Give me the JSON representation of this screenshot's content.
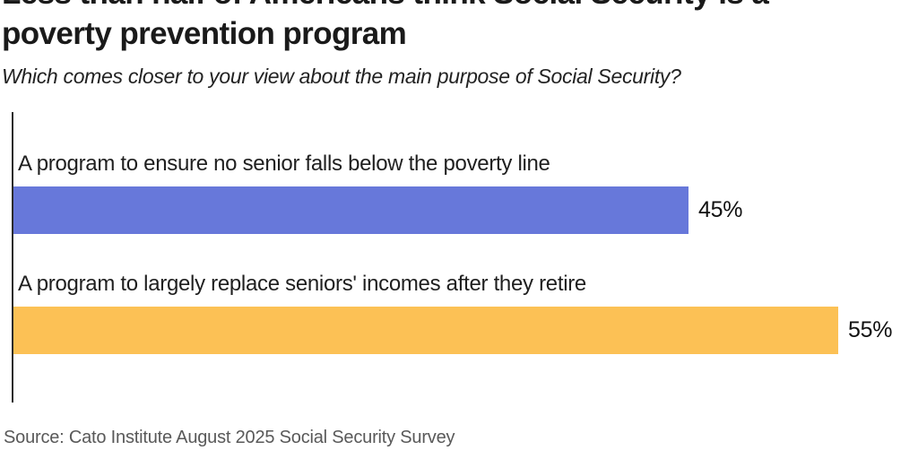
{
  "header": {
    "title_line1": "Less than half of Americans think Social Security is a",
    "title_line2": "poverty prevention program",
    "subtitle": "Which comes closer to your view about the main purpose of Social Security?"
  },
  "chart_data": {
    "type": "bar",
    "orientation": "horizontal",
    "title": "Less than half of Americans think Social Security is a poverty prevention program",
    "subtitle": "Which comes closer to your view about the main purpose of Social Security?",
    "categories": [
      "A program to ensure no senior falls below the poverty line",
      "A program to largely replace seniors' incomes after they retire"
    ],
    "values": [
      45,
      55
    ],
    "value_labels": [
      "45%",
      "55%"
    ],
    "bar_colors": [
      "#6778da",
      "#fcc155"
    ],
    "axis_line_color": "#2b2b2b",
    "xlim": [
      0,
      60
    ],
    "grid": false,
    "legend": false
  },
  "footer": {
    "source": "Source: Cato Institute August 2025 Social Security Survey"
  }
}
